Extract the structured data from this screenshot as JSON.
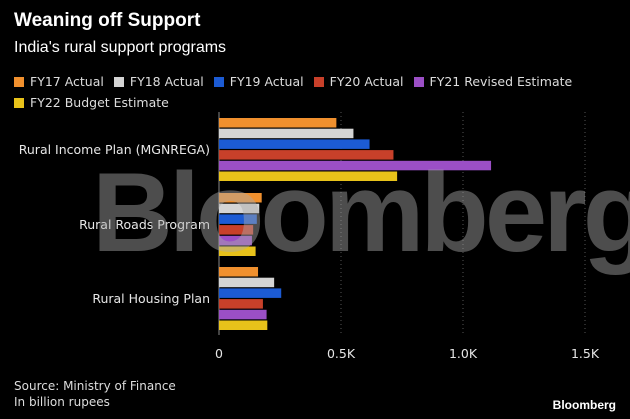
{
  "header": {
    "title": "Weaning off Support",
    "subtitle": "India's rural support programs"
  },
  "chart_data": {
    "type": "bar",
    "orientation": "horizontal",
    "title": "Weaning off Support",
    "subtitle": "India's rural support programs",
    "categories": [
      "Rural Income Plan (MGNREGA)",
      "Rural Roads Program",
      "Rural Housing Plan"
    ],
    "series": [
      {
        "name": "FY17 Actual",
        "color": "#f0902e",
        "values": [
          481,
          175,
          160
        ]
      },
      {
        "name": "FY18 Actual",
        "color": "#d4d4d4",
        "values": [
          551,
          165,
          226
        ]
      },
      {
        "name": "FY19 Actual",
        "color": "#1c5bd4",
        "values": [
          617,
          155,
          255
        ]
      },
      {
        "name": "FY20 Actual",
        "color": "#c8402a",
        "values": [
          715,
          140,
          180
        ]
      },
      {
        "name": "FY21 Revised Estimate",
        "color": "#9b4fc6",
        "values": [
          1115,
          135,
          195
        ]
      },
      {
        "name": "FY22 Budget Estimate",
        "color": "#e8c21a",
        "values": [
          730,
          150,
          198
        ]
      }
    ],
    "xlim": [
      0,
      1500
    ],
    "xticks": [
      0,
      500,
      1000,
      1500
    ],
    "xtick_labels": [
      "0",
      "0.5K",
      "1.0K",
      "1.5K"
    ],
    "xlabel": "",
    "ylabel": "",
    "grid": true,
    "legend_position": "top"
  },
  "footer": {
    "source": "Source: Ministry of Finance",
    "unit_note": "In billion rupees",
    "brand": "Bloomberg"
  },
  "watermark": "Bloomberg"
}
